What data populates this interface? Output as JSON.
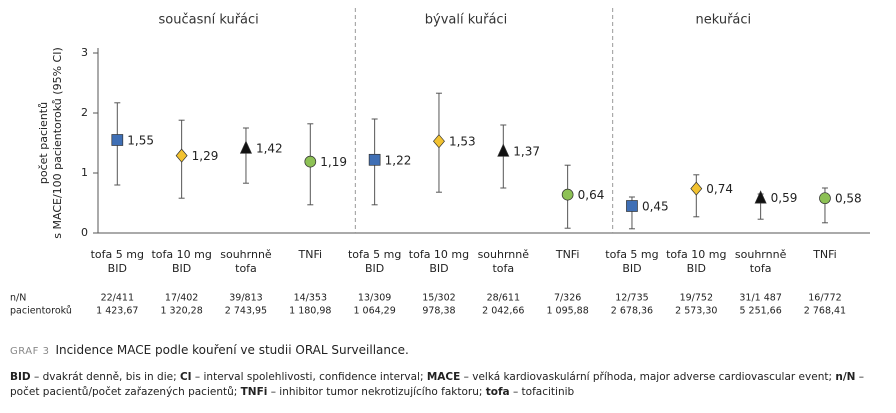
{
  "chart_data": {
    "type": "point",
    "y_label": [
      "počet pacientů",
      "s MACE/100 pacientoroků (95% CI)"
    ],
    "ylim": [
      0,
      3
    ],
    "yticks": [
      0,
      1,
      2,
      3
    ],
    "categories": [
      [
        "tofa 5 mg",
        "BID"
      ],
      [
        "tofa 10 mg",
        "BID"
      ],
      [
        "souhrnně",
        "tofa"
      ],
      [
        "TNFi"
      ]
    ],
    "markers": [
      {
        "shape": "square",
        "color": "#3f6fb5"
      },
      {
        "shape": "diamond",
        "color": "#f2c230"
      },
      {
        "shape": "triangle",
        "color": "#111111"
      },
      {
        "shape": "circle",
        "color": "#8dc155"
      }
    ],
    "table_row_labels": [
      "n/N",
      "pacientoroků"
    ],
    "panels": [
      {
        "title": "současní kuřáci",
        "values": [
          1.55,
          1.29,
          1.42,
          1.19
        ],
        "value_labels": [
          "1,55",
          "1,29",
          "1,42",
          "1,19"
        ],
        "lower": [
          0.8,
          0.58,
          0.83,
          0.47
        ],
        "upper": [
          2.17,
          1.88,
          1.75,
          1.82
        ],
        "n_N": [
          "22/411",
          "17/402",
          "39/813",
          "14/353"
        ],
        "patient_years": [
          "1 423,67",
          "1 320,28",
          "2 743,95",
          "1 180,98"
        ]
      },
      {
        "title": "bývalí kuřáci",
        "values": [
          1.22,
          1.53,
          1.37,
          0.64
        ],
        "value_labels": [
          "1,22",
          "1,53",
          "1,37",
          "0,64"
        ],
        "lower": [
          0.47,
          0.68,
          0.75,
          0.08
        ],
        "upper": [
          1.9,
          2.33,
          1.8,
          1.13
        ],
        "n_N": [
          "13/309",
          "15/302",
          "28/611",
          "7/326"
        ],
        "patient_years": [
          "1 064,29",
          "978,38",
          "2 042,66",
          "1 095,88"
        ]
      },
      {
        "title": "nekuřáci",
        "values": [
          0.45,
          0.74,
          0.59,
          0.58
        ],
        "value_labels": [
          "0,45",
          "0,74",
          "0,59",
          "0,58"
        ],
        "lower": [
          0.07,
          0.27,
          0.23,
          0.17
        ],
        "upper": [
          0.6,
          0.97,
          0.65,
          0.75
        ],
        "n_N": [
          "12/735",
          "19/752",
          "31/1 487",
          "16/772"
        ],
        "patient_years": [
          "2 678,36",
          "2 573,30",
          "5 251,66",
          "2 768,41"
        ]
      }
    ]
  },
  "caption": {
    "label": "GRAF 3",
    "text": "Incidence MACE podle kouření ve studii ORAL Surveillance."
  },
  "footnote": [
    {
      "text": "BID",
      "bold": true
    },
    {
      "text": " – dvakrát denně, bis in die; "
    },
    {
      "text": "CI",
      "bold": true
    },
    {
      "text": " – interval spolehlivosti, confidence interval; "
    },
    {
      "text": "MACE",
      "bold": true
    },
    {
      "text": " – velká kardiovaskulární příhoda, major adverse cardiovascular event; "
    },
    {
      "text": "n/N",
      "bold": true
    },
    {
      "text": " – počet pacientů/počet zařazených pacientů; "
    },
    {
      "text": "TNFi",
      "bold": true
    },
    {
      "text": " – inhibitor tumor nekrotizujícího faktoru; "
    },
    {
      "text": "tofa",
      "bold": true
    },
    {
      "text": " – tofacitinib"
    }
  ]
}
